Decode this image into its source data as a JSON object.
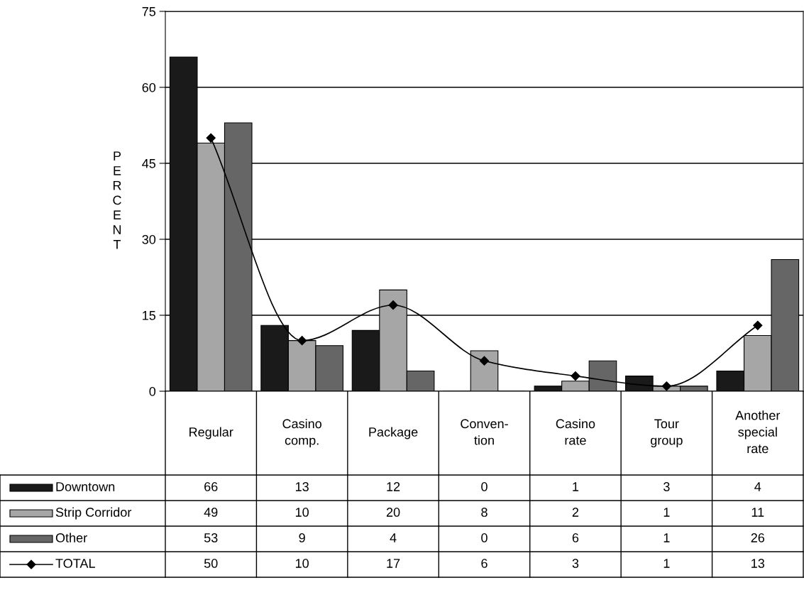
{
  "chart_data": {
    "type": "bar",
    "ylabel": "PERCENT",
    "categories": [
      "Regular",
      "Casino\ncomp.",
      "Package",
      "Conven-\ntion",
      "Casino\nrate",
      "Tour\ngroup",
      "Another\nspecial\nrate"
    ],
    "series": [
      {
        "name": "Downtown",
        "color": "#1a1a1a",
        "values": [
          66,
          13,
          12,
          0,
          1,
          3,
          4
        ]
      },
      {
        "name": "Strip Corridor",
        "color": "#a6a6a6",
        "values": [
          49,
          10,
          20,
          8,
          2,
          1,
          11
        ]
      },
      {
        "name": "Other",
        "color": "#666666",
        "values": [
          53,
          9,
          4,
          0,
          6,
          1,
          26
        ]
      },
      {
        "name": "TOTAL",
        "type": "line",
        "color": "#000000",
        "marker": "diamond",
        "values": [
          50,
          10,
          17,
          6,
          3,
          1,
          13
        ]
      }
    ],
    "ylim": [
      0,
      75
    ],
    "yticks": [
      0,
      15,
      30,
      45,
      60,
      75
    ],
    "grid": "y",
    "legend": "bottom left",
    "data_labels": true
  }
}
